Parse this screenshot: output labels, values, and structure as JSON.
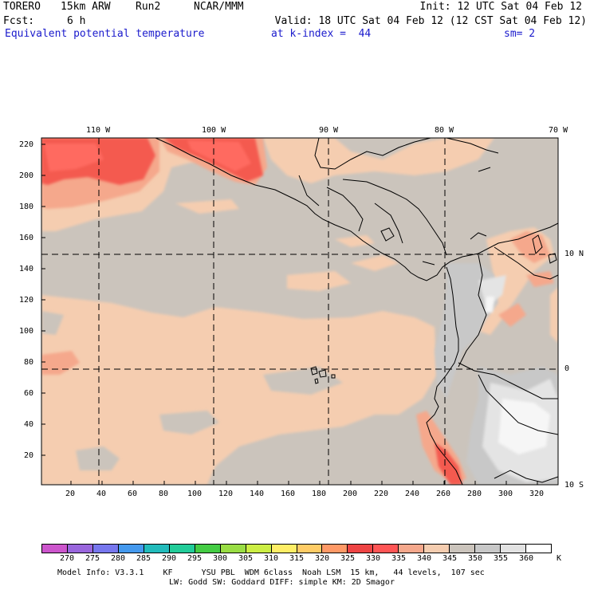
{
  "header": {
    "model": "TORERO",
    "resolution": "15km ARW",
    "run": "Run2",
    "org": "NCAR/MMM",
    "init": "Init: 12 UTC Sat 04 Feb 12",
    "fcst_label": "Fcst:",
    "fcst_value": "6 h",
    "valid": "Valid: 18 UTC Sat 04 Feb 12 (12 CST Sat 04 Feb 12)",
    "field": "Equivalent potential temperature",
    "level": "at k-index =  44",
    "smoothing": "sm= 2"
  },
  "map": {
    "top_lon_labels": [
      "110 W",
      "100 W",
      "90 W",
      "80 W",
      "70 W"
    ],
    "right_lat_labels": [
      "10 N",
      "0",
      "10 S"
    ],
    "left_y_ticks": [
      "220",
      "200",
      "180",
      "160",
      "140",
      "120",
      "100",
      "80",
      "60",
      "40",
      "20"
    ],
    "bottom_x_ticks": [
      "20",
      "40",
      "60",
      "80",
      "100",
      "120",
      "140",
      "160",
      "180",
      "200",
      "220",
      "240",
      "260",
      "280",
      "300",
      "320"
    ]
  },
  "colorbar": {
    "values": [
      "270",
      "275",
      "280",
      "285",
      "290",
      "295",
      "300",
      "305",
      "310",
      "315",
      "320",
      "325",
      "330",
      "335",
      "340",
      "345",
      "350",
      "355",
      "360"
    ],
    "unit": "K",
    "colors": [
      "#cc55cc",
      "#9966dd",
      "#7777ee",
      "#4499ee",
      "#22bbbb",
      "#22cc99",
      "#44cc44",
      "#99dd44",
      "#ccee44",
      "#ffee66",
      "#ffcc66",
      "#ff9966",
      "#ee4444",
      "#ff5555",
      "#f5a88c",
      "#f5cdb0",
      "#cbc4bc",
      "#c8c8c8",
      "#e2e2e2",
      "#ffffff"
    ]
  },
  "footer": {
    "line1": "Model Info: V3.3.1    KF      YSU PBL  WDM 6class  Noah LSM  15 km,   44 levels,  107 sec",
    "line2": "LW: Godd SW: Goddard DIFF: simple KM: 2D Smagor"
  }
}
